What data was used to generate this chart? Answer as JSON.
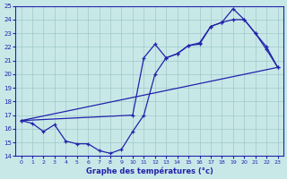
{
  "xlabel": "Graphe des températures (°c)",
  "xlim": [
    -0.5,
    23.5
  ],
  "ylim": [
    14,
    25
  ],
  "xticks": [
    0,
    1,
    2,
    3,
    4,
    5,
    6,
    7,
    8,
    9,
    10,
    11,
    12,
    13,
    14,
    15,
    16,
    17,
    18,
    19,
    20,
    21,
    22,
    23
  ],
  "yticks": [
    14,
    15,
    16,
    17,
    18,
    19,
    20,
    21,
    22,
    23,
    24,
    25
  ],
  "background_color": "#c8e8e8",
  "grid_color": "#a0c8c8",
  "line_color": "#2222aa",
  "line1_x": [
    0,
    1,
    2,
    3,
    4,
    5,
    6,
    7,
    8,
    9,
    10,
    11,
    12,
    13,
    14,
    15,
    16,
    17,
    18,
    19,
    20,
    21,
    22,
    23
  ],
  "line1_y": [
    16.6,
    16.4,
    15.8,
    16.3,
    15.1,
    14.9,
    14.9,
    14.4,
    14.2,
    14.5,
    15.8,
    17.0,
    20.0,
    21.2,
    21.5,
    22.1,
    22.2,
    23.5,
    23.8,
    24.0,
    24.0,
    23.0,
    21.8,
    20.5
  ],
  "line2_x": [
    0,
    23
  ],
  "line2_y": [
    16.6,
    20.5
  ],
  "line3_x": [
    0,
    10,
    11,
    12,
    13,
    14,
    15,
    16,
    17,
    18,
    19,
    20,
    21,
    22,
    23
  ],
  "line3_y": [
    16.6,
    17.0,
    21.2,
    22.2,
    21.2,
    21.5,
    22.1,
    22.3,
    23.5,
    23.8,
    24.8,
    24.0,
    23.0,
    22.0,
    20.5
  ]
}
